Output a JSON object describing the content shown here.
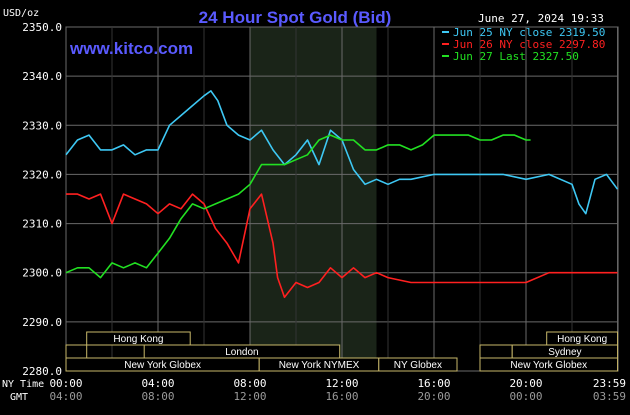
{
  "chart_data": {
    "type": "line",
    "title": "24 Hour Spot Gold (Bid)",
    "site": "www.kitco.com",
    "timestamp": "June 27, 2024 19:33",
    "ylabel": "USD/oz",
    "ylim": [
      2280,
      2350
    ],
    "y_ticks": [
      "2280.0",
      "2290.0",
      "2300.0",
      "2310.0",
      "2320.0",
      "2330.0",
      "2340.0",
      "2350.0"
    ],
    "x_range_hours": [
      0,
      24
    ],
    "x_ticks_ny": [
      "00:00",
      "04:00",
      "08:00",
      "12:00",
      "16:00",
      "20:00",
      "23:59"
    ],
    "x_ticks_gmt": [
      "04:00",
      "08:00",
      "12:00",
      "16:00",
      "20:00",
      "00:00",
      "03:59"
    ],
    "x_tick_hours": [
      0,
      4,
      8,
      12,
      16,
      20,
      23.98
    ],
    "x_row_labels": {
      "ny": "NY Time",
      "gmt": "GMT"
    },
    "grid": true,
    "legend_position": "top-right",
    "shaded_hours": [
      8,
      13.5
    ],
    "series": [
      {
        "name": "Jun 25 NY close 2319.50",
        "color": "#3ec8f4",
        "x": [
          0,
          0.5,
          1,
          1.5,
          2,
          2.5,
          3,
          3.5,
          4,
          4.5,
          5,
          5.5,
          6,
          6.3,
          6.6,
          7,
          7.5,
          8,
          8.5,
          9,
          9.5,
          10,
          10.5,
          11,
          11.5,
          12,
          12.5,
          13,
          13.5,
          14,
          14.5,
          15,
          16,
          17,
          18,
          19,
          20,
          21,
          22,
          22.3,
          22.6,
          23,
          23.5,
          23.98
        ],
        "values": [
          2324,
          2327,
          2328,
          2325,
          2325,
          2326,
          2324,
          2325,
          2325,
          2330,
          2332,
          2334,
          2336,
          2337,
          2335,
          2330,
          2328,
          2327,
          2329,
          2325,
          2322,
          2324,
          2327,
          2322,
          2329,
          2327,
          2321,
          2318,
          2319,
          2318,
          2319,
          2319,
          2320,
          2320,
          2320,
          2320,
          2319,
          2320,
          2318,
          2314,
          2312,
          2319,
          2320,
          2317
        ]
      },
      {
        "name": "Jun 26 NY close 2297.80",
        "color": "#ff2020",
        "x": [
          0,
          0.5,
          1,
          1.5,
          2,
          2.5,
          3,
          3.5,
          4,
          4.5,
          5,
          5.5,
          6,
          6.5,
          7,
          7.5,
          8,
          8.5,
          9,
          9.2,
          9.5,
          10,
          10.5,
          11,
          11.5,
          12,
          12.5,
          13,
          13.5,
          14,
          15,
          16,
          17,
          18,
          19,
          20,
          21,
          22,
          23,
          23.98
        ],
        "values": [
          2316,
          2316,
          2315,
          2316,
          2310,
          2316,
          2315,
          2314,
          2312,
          2314,
          2313,
          2316,
          2314,
          2309,
          2306,
          2302,
          2313,
          2316,
          2306,
          2299,
          2295,
          2298,
          2297,
          2298,
          2301,
          2299,
          2301,
          2299,
          2300,
          2299,
          2298,
          2298,
          2298,
          2298,
          2298,
          2298,
          2300,
          2300,
          2300,
          2300
        ]
      },
      {
        "name": "Jun 27 Last 2327.50",
        "color": "#22e022",
        "x": [
          0,
          0.5,
          1,
          1.5,
          2,
          2.5,
          3,
          3.5,
          4,
          4.5,
          5,
          5.5,
          6,
          6.5,
          7,
          7.5,
          8,
          8.5,
          9,
          9.5,
          10,
          10.5,
          11,
          11.5,
          12,
          12.5,
          13,
          13.5,
          14,
          14.5,
          15,
          15.5,
          16,
          16.5,
          17,
          17.5,
          18,
          18.5,
          19,
          19.5,
          20,
          20.2
        ],
        "values": [
          2300,
          2301,
          2301,
          2299,
          2302,
          2301,
          2302,
          2301,
          2304,
          2307,
          2311,
          2314,
          2313,
          2314,
          2315,
          2316,
          2318,
          2322,
          2322,
          2322,
          2323,
          2324,
          2327,
          2328,
          2327,
          2327,
          2325,
          2325,
          2326,
          2326,
          2325,
          2326,
          2328,
          2328,
          2328,
          2328,
          2327,
          2327,
          2328,
          2328,
          2327,
          2327
        ]
      }
    ],
    "sessions": [
      {
        "label": "Hong Kong",
        "start": 0.9,
        "end": 5.4,
        "row": 0
      },
      {
        "label": "London",
        "start": 3.4,
        "end": 11.9,
        "row": 1
      },
      {
        "label": "New York Globex",
        "start": 0,
        "end": 8.4,
        "row": 2
      },
      {
        "label": "New York NYMEX",
        "start": 8.4,
        "end": 13.6,
        "row": 2
      },
      {
        "label": "NY Globex",
        "start": 13.6,
        "end": 17.0,
        "row": 2
      },
      {
        "label": "Hong Kong",
        "start": 20.9,
        "end": 23.98,
        "row": 0
      },
      {
        "label": "Sydney",
        "start": 19.4,
        "end": 23.98,
        "row": 1
      },
      {
        "label": "New York Globex",
        "start": 18.0,
        "end": 23.98,
        "row": 2
      }
    ],
    "session_extra_boxes": [
      {
        "start": 0,
        "end": 0.9,
        "row": 1
      },
      {
        "start": 18.0,
        "end": 19.4,
        "row": 1
      }
    ]
  }
}
